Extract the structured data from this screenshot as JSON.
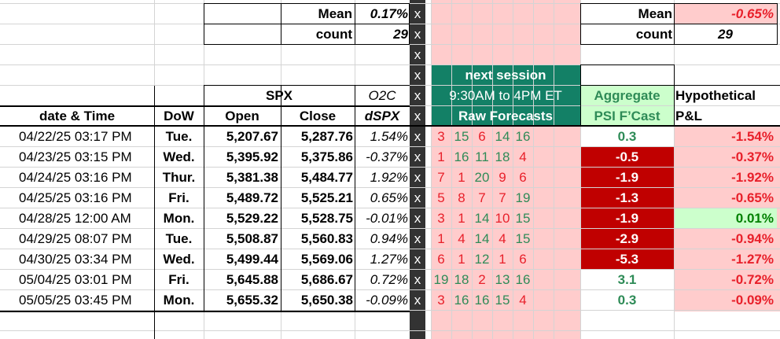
{
  "colors": {
    "pink_fill": "#ffcccc",
    "dark_column": "#333333",
    "teal_header": "#138066",
    "teal_text": "#2e8b57",
    "red_text": "#e8202a",
    "dark_red_fill": "#c00000",
    "green_fill": "#ccffcc",
    "green_text": "#008000",
    "grid_line": "#d4d4d4"
  },
  "summary_left": {
    "mean_label": "Mean",
    "mean_value": "0.17%",
    "count_label": "count",
    "count_value": "29"
  },
  "summary_right": {
    "mean_label": "Mean",
    "mean_value": "-0.65%",
    "count_label": "count",
    "count_value": "29"
  },
  "x_marker": "x",
  "headers": {
    "spx": "SPX",
    "o2c": "O2C",
    "next_session": "next session",
    "session_hours": "9:30AM to 4PM ET",
    "raw_forecasts": "Raw Forecasts",
    "aggregate": "Aggregate",
    "psi_fcast": "PSI F’Cast",
    "hypothetical": "Hypothetical",
    "pnl": "P&L",
    "date_time": "date & Time",
    "dow": "DoW",
    "open": "Open",
    "close": "Close",
    "dspx": "dSPX"
  },
  "rows": [
    {
      "date": "04/22/25 03:17 PM",
      "dow": "Tue.",
      "open": "5,207.67",
      "close": "5,287.76",
      "dspx": "1.54%",
      "forecasts": [
        "3",
        "15",
        "6",
        "14",
        "16"
      ],
      "psi": "0.3",
      "pnl": "-1.54%"
    },
    {
      "date": "04/23/25 03:15 PM",
      "dow": "Wed.",
      "open": "5,395.92",
      "close": "5,375.86",
      "dspx": "-0.37%",
      "forecasts": [
        "1",
        "16",
        "11",
        "18",
        "4"
      ],
      "psi": "-0.5",
      "pnl": "-0.37%"
    },
    {
      "date": "04/24/25 03:16 PM",
      "dow": "Thur.",
      "open": "5,381.38",
      "close": "5,484.77",
      "dspx": "1.92%",
      "forecasts": [
        "7",
        "1",
        "20",
        "9",
        "6"
      ],
      "psi": "-1.9",
      "pnl": "-1.92%"
    },
    {
      "date": "04/25/25 03:16 PM",
      "dow": "Fri.",
      "open": "5,489.72",
      "close": "5,525.21",
      "dspx": "0.65%",
      "forecasts": [
        "5",
        "8",
        "7",
        "7",
        "19"
      ],
      "psi": "-1.3",
      "pnl": "-0.65%"
    },
    {
      "date": "04/28/25 12:00 AM",
      "dow": "Mon.",
      "open": "5,529.22",
      "close": "5,528.75",
      "dspx": "-0.01%",
      "forecasts": [
        "3",
        "1",
        "14",
        "10",
        "15"
      ],
      "psi": "-1.9",
      "pnl": "0.01%"
    },
    {
      "date": "04/29/25 08:07 PM",
      "dow": "Tue.",
      "open": "5,508.87",
      "close": "5,560.83",
      "dspx": "0.94%",
      "forecasts": [
        "1",
        "4",
        "14",
        "4",
        "15"
      ],
      "psi": "-2.9",
      "pnl": "-0.94%"
    },
    {
      "date": "04/30/25 03:34 PM",
      "dow": "Wed.",
      "open": "5,499.44",
      "close": "5,569.06",
      "dspx": "1.27%",
      "forecasts": [
        "6",
        "1",
        "12",
        "1",
        "6"
      ],
      "psi": "-5.3",
      "pnl": "-1.27%"
    },
    {
      "date": "05/04/25 03:01 PM",
      "dow": "Fri.",
      "open": "5,645.88",
      "close": "5,686.67",
      "dspx": "0.72%",
      "forecasts": [
        "19",
        "18",
        "2",
        "13",
        "16"
      ],
      "psi": "3.1",
      "pnl": "-0.72%"
    },
    {
      "date": "05/05/25 03:45 PM",
      "dow": "Mon.",
      "open": "5,655.32",
      "close": "5,650.38",
      "dspx": "-0.09%",
      "forecasts": [
        "3",
        "16",
        "16",
        "15",
        "4"
      ],
      "psi": "0.3",
      "pnl": "-0.09%"
    }
  ]
}
